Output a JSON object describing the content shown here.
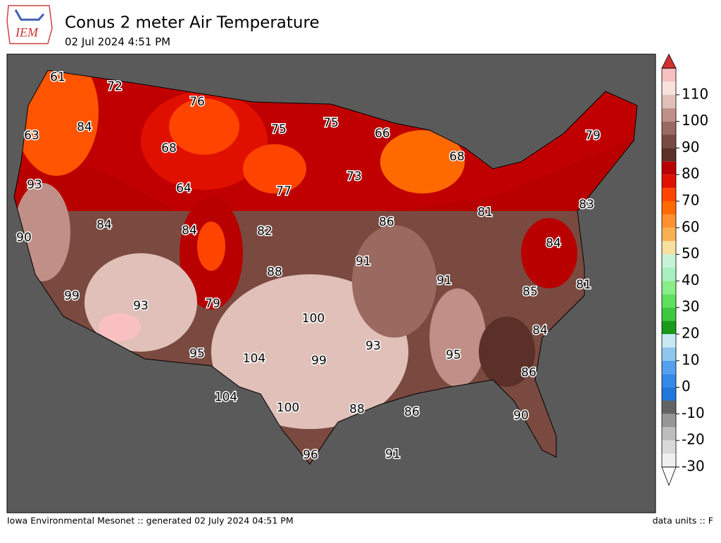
{
  "header": {
    "logo": "IEM",
    "title": "Conus 2 meter Air Temperature",
    "subtitle": "02 Jul 2024 4:51 PM"
  },
  "temperature_labels": [
    61,
    72,
    76,
    84,
    63,
    75,
    75,
    66,
    79,
    68,
    68,
    73,
    93,
    64,
    77,
    81,
    83,
    84,
    84,
    82,
    86,
    90,
    84,
    91,
    88,
    91,
    81,
    85,
    99,
    93,
    79,
    100,
    84,
    93,
    95,
    104,
    99,
    95,
    86,
    104,
    100,
    88,
    86,
    90,
    96,
    91
  ],
  "colorbar": {
    "lim": [
      -30,
      120
    ],
    "ticks": [
      -30,
      -20,
      -10,
      0,
      10,
      20,
      30,
      40,
      50,
      60,
      70,
      80,
      90,
      100,
      110
    ],
    "colors": [
      "#f0f0f0",
      "#d9d9d9",
      "#bdbdbd",
      "#969696",
      "#636363",
      "#1f78d9",
      "#3388e8",
      "#55a0ee",
      "#8ec6ee",
      "#c8e8f2",
      "#1a9a1a",
      "#3ec83e",
      "#5ee05e",
      "#88ee88",
      "#a8f0c0",
      "#c8f2d8",
      "#f8e0a0",
      "#f8b050",
      "#ff9030",
      "#ff6a00",
      "#ff4400",
      "#e01000",
      "#b80000",
      "#5a3028",
      "#7a4a40",
      "#9a6a60",
      "#c09088",
      "#e0c0b8",
      "#f8e0dc",
      "#f8c0c0"
    ],
    "over_color": "#d03030",
    "under_color": "#ffffff"
  },
  "footer": {
    "left": "Iowa Environmental Mesonet :: generated 02 July 2024 04:51 PM",
    "right": "data units :: F"
  }
}
